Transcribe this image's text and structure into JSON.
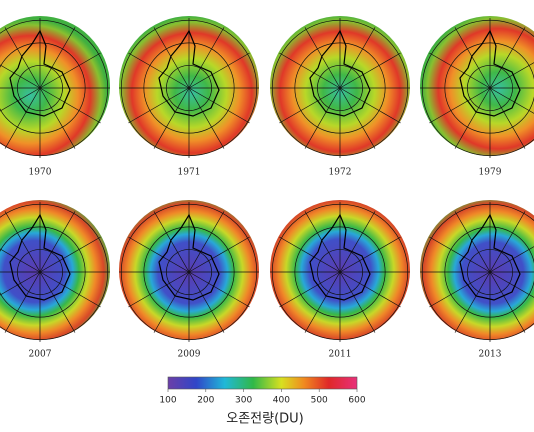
{
  "maps": [
    {
      "year": "1970"
    },
    {
      "year": "1971"
    },
    {
      "year": "1972"
    },
    {
      "year": "1979"
    },
    {
      "year": "2007"
    },
    {
      "year": "2009"
    },
    {
      "year": "2011"
    },
    {
      "year": "2013"
    }
  ],
  "colorbar": {
    "range": [
      100,
      600
    ],
    "ticks": [
      100,
      200,
      300,
      400,
      500,
      600
    ],
    "label": "오존전량(DU)"
  }
}
